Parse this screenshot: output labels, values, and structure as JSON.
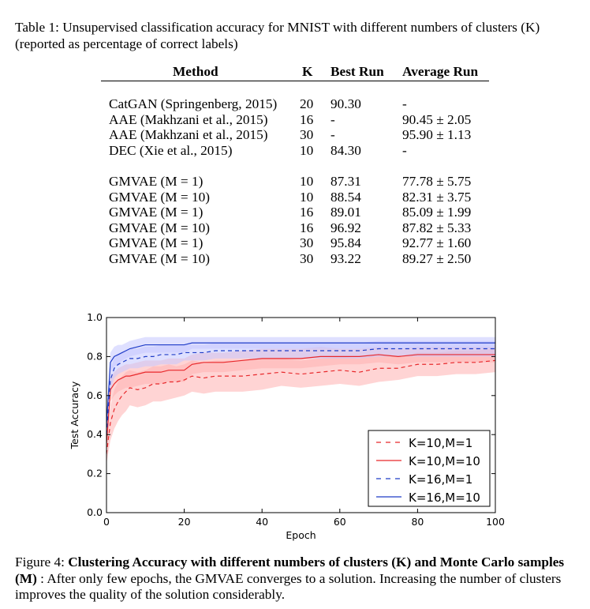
{
  "table": {
    "caption": "Table 1: Unsupervised classification accuracy for MNIST with different numbers of clusters (K) (reported as percentage of correct labels)",
    "headers": {
      "method": "Method",
      "k": "K",
      "best": "Best Run",
      "avg": "Average Run"
    },
    "groups": [
      [
        {
          "method": "CatGAN (Springenberg, 2015)",
          "k": "20",
          "best": "90.30",
          "avg": "-"
        },
        {
          "method": "AAE (Makhzani et al., 2015)",
          "k": "16",
          "best": "-",
          "avg": "90.45 ± 2.05"
        },
        {
          "method": "AAE (Makhzani et al., 2015)",
          "k": "30",
          "best": "-",
          "avg": "95.90 ± 1.13"
        },
        {
          "method": "DEC (Xie et al., 2015)",
          "k": "10",
          "best": "84.30",
          "avg": "-"
        }
      ],
      [
        {
          "method": "GMVAE (M = 1)",
          "k": "10",
          "best": "87.31",
          "avg": "77.78 ± 5.75"
        },
        {
          "method": "GMVAE (M = 10)",
          "k": "10",
          "best": "88.54",
          "avg": "82.31 ± 3.75"
        },
        {
          "method": "GMVAE (M = 1)",
          "k": "16",
          "best": "89.01",
          "avg": "85.09 ± 1.99"
        },
        {
          "method": "GMVAE (M = 10)",
          "k": "16",
          "best": "96.92",
          "avg": "87.82 ± 5.33"
        },
        {
          "method": "GMVAE (M = 1)",
          "k": "30",
          "best": "95.84",
          "avg": "92.77 ± 1.60"
        },
        {
          "method": "GMVAE (M = 10)",
          "k": "30",
          "best": "93.22",
          "avg": "89.27 ± 2.50"
        }
      ]
    ]
  },
  "figure": {
    "caption_prefix": "Figure 4: ",
    "caption_bold": "Clustering Accuracy with different numbers of clusters (K) and Monte Carlo samples (M)",
    "caption_rest": " : After only few epochs, the GMVAE converges to a solution. Increasing the number of clusters improves the quality of the solution considerably."
  },
  "chart_data": {
    "type": "line",
    "title": "",
    "xlabel": "Epoch",
    "ylabel": "Test Accuracy",
    "xlim": [
      0,
      100
    ],
    "ylim": [
      0.0,
      1.0
    ],
    "xticks": [
      "0",
      "20",
      "40",
      "60",
      "80",
      "100"
    ],
    "yticks": [
      "0.0",
      "0.2",
      "0.4",
      "0.6",
      "0.8",
      "1.0"
    ],
    "grid": false,
    "legend_position": "bottom-right",
    "series": [
      {
        "name": "K=10,M=1",
        "color": "#e8282b",
        "dash": true,
        "band_color": "#ffb0b0",
        "x": [
          0,
          1,
          2,
          3,
          4,
          5,
          6,
          8,
          10,
          12,
          14,
          16,
          18,
          20,
          22,
          25,
          28,
          30,
          35,
          40,
          45,
          50,
          55,
          60,
          65,
          70,
          75,
          80,
          85,
          90,
          95,
          100
        ],
        "y": [
          0.3,
          0.46,
          0.53,
          0.57,
          0.6,
          0.62,
          0.64,
          0.63,
          0.64,
          0.66,
          0.66,
          0.67,
          0.67,
          0.68,
          0.7,
          0.69,
          0.7,
          0.7,
          0.7,
          0.71,
          0.72,
          0.71,
          0.72,
          0.73,
          0.72,
          0.74,
          0.74,
          0.76,
          0.76,
          0.77,
          0.77,
          0.78
        ],
        "spread": [
          0.05,
          0.09,
          0.1,
          0.1,
          0.1,
          0.1,
          0.09,
          0.09,
          0.09,
          0.09,
          0.09,
          0.09,
          0.08,
          0.08,
          0.08,
          0.08,
          0.08,
          0.08,
          0.08,
          0.08,
          0.07,
          0.07,
          0.07,
          0.07,
          0.07,
          0.07,
          0.06,
          0.06,
          0.06,
          0.06,
          0.06,
          0.06
        ]
      },
      {
        "name": "K=10,M=10",
        "color": "#e8282b",
        "dash": false,
        "band_color": "#ffb0b0",
        "x": [
          0,
          1,
          2,
          3,
          4,
          5,
          6,
          8,
          10,
          12,
          14,
          16,
          18,
          20,
          22,
          25,
          28,
          30,
          35,
          40,
          45,
          50,
          55,
          60,
          65,
          70,
          75,
          80,
          85,
          90,
          95,
          100
        ],
        "y": [
          0.35,
          0.63,
          0.66,
          0.68,
          0.69,
          0.7,
          0.7,
          0.71,
          0.72,
          0.72,
          0.72,
          0.73,
          0.73,
          0.73,
          0.76,
          0.77,
          0.77,
          0.77,
          0.78,
          0.79,
          0.79,
          0.79,
          0.8,
          0.8,
          0.8,
          0.81,
          0.8,
          0.81,
          0.81,
          0.81,
          0.81,
          0.81
        ],
        "spread": [
          0.04,
          0.06,
          0.06,
          0.06,
          0.06,
          0.06,
          0.06,
          0.06,
          0.06,
          0.06,
          0.06,
          0.06,
          0.06,
          0.06,
          0.05,
          0.05,
          0.05,
          0.05,
          0.05,
          0.05,
          0.05,
          0.05,
          0.05,
          0.04,
          0.04,
          0.04,
          0.04,
          0.04,
          0.04,
          0.04,
          0.04,
          0.04
        ]
      },
      {
        "name": "K=16,M=1",
        "color": "#1f3cc8",
        "dash": true,
        "band_color": "#c4c6ff",
        "x": [
          0,
          1,
          2,
          3,
          4,
          5,
          6,
          8,
          10,
          12,
          14,
          16,
          18,
          20,
          22,
          25,
          28,
          30,
          35,
          40,
          45,
          50,
          55,
          60,
          65,
          70,
          75,
          80,
          85,
          90,
          95,
          100
        ],
        "y": [
          0.4,
          0.68,
          0.74,
          0.76,
          0.77,
          0.78,
          0.79,
          0.79,
          0.8,
          0.8,
          0.81,
          0.81,
          0.81,
          0.82,
          0.82,
          0.82,
          0.83,
          0.83,
          0.83,
          0.83,
          0.83,
          0.83,
          0.83,
          0.83,
          0.83,
          0.84,
          0.84,
          0.84,
          0.84,
          0.84,
          0.84,
          0.84
        ],
        "spread": [
          0.04,
          0.06,
          0.05,
          0.05,
          0.05,
          0.05,
          0.05,
          0.05,
          0.05,
          0.05,
          0.05,
          0.05,
          0.05,
          0.04,
          0.04,
          0.04,
          0.04,
          0.04,
          0.04,
          0.04,
          0.04,
          0.04,
          0.04,
          0.04,
          0.04,
          0.04,
          0.04,
          0.04,
          0.04,
          0.04,
          0.04,
          0.04
        ]
      },
      {
        "name": "K=16,M=10",
        "color": "#1f3cc8",
        "dash": false,
        "band_color": "#c4c6ff",
        "x": [
          0,
          1,
          2,
          3,
          4,
          5,
          6,
          8,
          10,
          12,
          14,
          16,
          18,
          20,
          22,
          25,
          28,
          30,
          35,
          40,
          45,
          50,
          55,
          60,
          65,
          70,
          75,
          80,
          85,
          90,
          95,
          100
        ],
        "y": [
          0.45,
          0.77,
          0.8,
          0.81,
          0.82,
          0.83,
          0.84,
          0.85,
          0.86,
          0.86,
          0.86,
          0.86,
          0.86,
          0.86,
          0.87,
          0.87,
          0.87,
          0.87,
          0.87,
          0.87,
          0.87,
          0.87,
          0.87,
          0.87,
          0.87,
          0.87,
          0.87,
          0.87,
          0.87,
          0.87,
          0.87,
          0.87
        ],
        "spread": [
          0.04,
          0.05,
          0.05,
          0.05,
          0.04,
          0.04,
          0.04,
          0.04,
          0.04,
          0.04,
          0.04,
          0.04,
          0.04,
          0.04,
          0.03,
          0.03,
          0.03,
          0.03,
          0.03,
          0.03,
          0.03,
          0.03,
          0.03,
          0.03,
          0.03,
          0.03,
          0.03,
          0.03,
          0.03,
          0.03,
          0.03,
          0.03
        ]
      }
    ]
  }
}
